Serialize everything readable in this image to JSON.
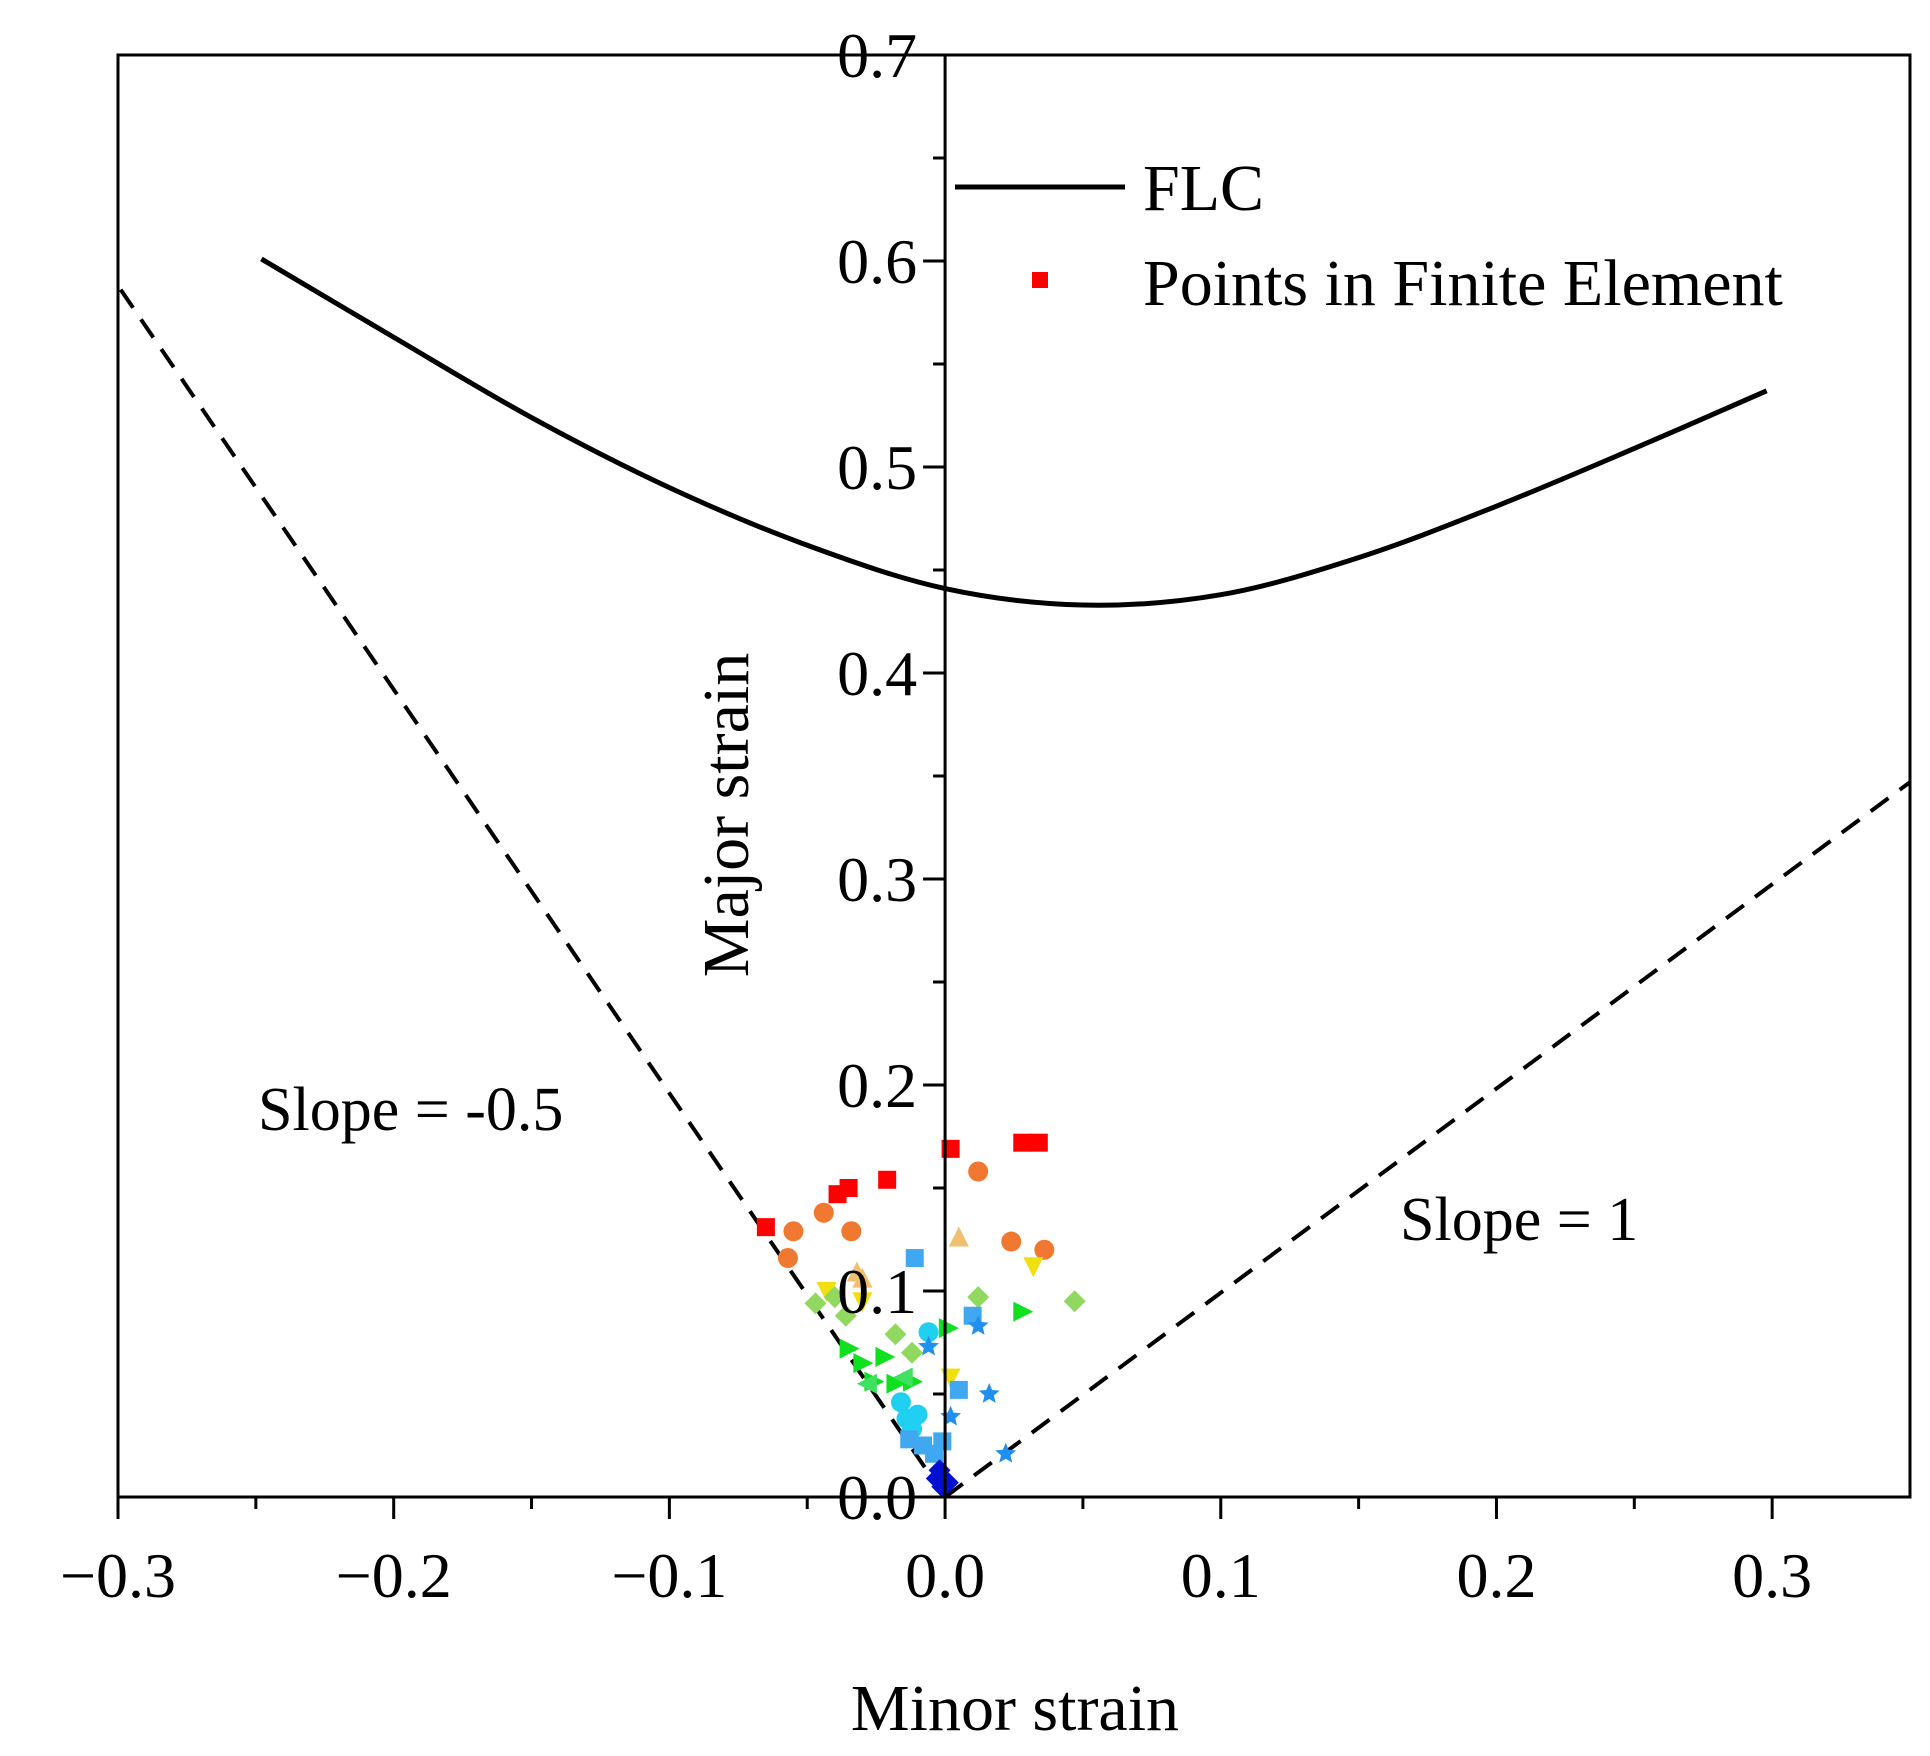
{
  "chart_data": {
    "type": "scatter",
    "title": "",
    "xlabel": "Minor strain",
    "ylabel": "Major strain",
    "xlim": [
      -0.3,
      0.35
    ],
    "ylim": [
      0.0,
      0.7
    ],
    "xticks": [
      -0.3,
      -0.2,
      -0.1,
      0.0,
      0.1,
      0.2,
      0.3
    ],
    "xtick_labels": [
      "−0.3",
      "−0.2",
      "−0.1",
      "0.0",
      "0.1",
      "0.2",
      "0.3"
    ],
    "yticks": [
      0.0,
      0.1,
      0.2,
      0.3,
      0.4,
      0.5,
      0.6,
      0.7
    ],
    "ytick_labels": [
      "0.0",
      "0.1",
      "0.2",
      "0.3",
      "0.4",
      "0.5",
      "0.6",
      "0.7"
    ],
    "grid": false,
    "legend_position": "top-right",
    "legend": [
      {
        "label": "FLC",
        "kind": "line",
        "color": "#000000"
      },
      {
        "label": "Points in Finite Element",
        "kind": "marker",
        "color": "#ff0000"
      }
    ],
    "flc_curve": {
      "name": "FLC",
      "x": [
        -0.248,
        -0.2,
        -0.15,
        -0.1,
        -0.05,
        0.0,
        0.05,
        0.1,
        0.15,
        0.2,
        0.25,
        0.298
      ],
      "y": [
        0.601,
        0.563,
        0.524,
        0.49,
        0.462,
        0.441,
        0.433,
        0.438,
        0.456,
        0.481,
        0.509,
        0.537
      ]
    },
    "reference_lines": [
      {
        "name": "slope-negative",
        "label": "Slope = -0.5",
        "x": [
          0.0,
          -0.3
        ],
        "y": [
          0.0,
          0.588
        ],
        "style": "dashed"
      },
      {
        "name": "slope-positive",
        "label": "Slope = 1",
        "x": [
          0.0,
          0.35
        ],
        "y": [
          0.0,
          0.347
        ],
        "style": "dashed"
      }
    ],
    "annotations": [
      "Slope = -0.5",
      "Slope = 1"
    ],
    "series": [
      {
        "name": "red-squares",
        "marker": "square",
        "color": "#ff0000",
        "points": [
          [
            -0.065,
            0.131
          ],
          [
            -0.039,
            0.147
          ],
          [
            -0.035,
            0.15
          ],
          [
            -0.021,
            0.154
          ],
          [
            0.002,
            0.169
          ],
          [
            0.028,
            0.172
          ],
          [
            0.034,
            0.172
          ]
        ]
      },
      {
        "name": "orange-circles",
        "marker": "circle",
        "color": "#f07830",
        "points": [
          [
            -0.057,
            0.116
          ],
          [
            -0.055,
            0.129
          ],
          [
            -0.044,
            0.138
          ],
          [
            -0.034,
            0.129
          ],
          [
            0.012,
            0.158
          ],
          [
            0.024,
            0.124
          ],
          [
            0.036,
            0.12
          ]
        ]
      },
      {
        "name": "light-orange-triangles",
        "marker": "triangle-up",
        "color": "#f0c070",
        "points": [
          [
            -0.032,
            0.109
          ],
          [
            -0.03,
            0.106
          ],
          [
            0.005,
            0.126
          ]
        ]
      },
      {
        "name": "yellow-down-triangles",
        "marker": "triangle-down",
        "color": "#f0e010",
        "points": [
          [
            -0.043,
            0.1
          ],
          [
            -0.03,
            0.095
          ],
          [
            0.002,
            0.058
          ],
          [
            0.032,
            0.112
          ]
        ]
      },
      {
        "name": "light-green-diamonds",
        "marker": "diamond",
        "color": "#90d860",
        "points": [
          [
            -0.047,
            0.094
          ],
          [
            -0.04,
            0.097
          ],
          [
            -0.036,
            0.088
          ],
          [
            -0.018,
            0.079
          ],
          [
            -0.012,
            0.07
          ],
          [
            0.012,
            0.097
          ],
          [
            0.047,
            0.095
          ]
        ]
      },
      {
        "name": "green-right-triangles",
        "marker": "triangle-right",
        "color": "#10e020",
        "points": [
          [
            -0.035,
            0.072
          ],
          [
            -0.03,
            0.065
          ],
          [
            -0.022,
            0.068
          ],
          [
            -0.026,
            0.056
          ],
          [
            -0.018,
            0.055
          ],
          [
            -0.012,
            0.056
          ],
          [
            0.001,
            0.082
          ],
          [
            0.028,
            0.09
          ]
        ]
      },
      {
        "name": "green-left-triangles",
        "marker": "triangle-left",
        "color": "#40e060",
        "points": [
          [
            -0.028,
            0.055
          ],
          [
            -0.015,
            0.058
          ]
        ]
      },
      {
        "name": "cyan-circles",
        "marker": "circle",
        "color": "#20d0f0",
        "points": [
          [
            -0.016,
            0.046
          ],
          [
            -0.014,
            0.038
          ],
          [
            -0.01,
            0.04
          ],
          [
            -0.012,
            0.033
          ],
          [
            -0.006,
            0.08
          ]
        ]
      },
      {
        "name": "sky-blue-squares",
        "marker": "square",
        "color": "#40a8f0",
        "points": [
          [
            -0.011,
            0.116
          ],
          [
            0.005,
            0.052
          ],
          [
            0.01,
            0.088
          ],
          [
            -0.008,
            0.025
          ],
          [
            -0.004,
            0.021
          ],
          [
            -0.001,
            0.027
          ],
          [
            -0.013,
            0.028
          ]
        ]
      },
      {
        "name": "blue-stars",
        "marker": "star",
        "color": "#2090f0",
        "points": [
          [
            -0.006,
            0.073
          ],
          [
            0.002,
            0.039
          ],
          [
            0.012,
            0.083
          ],
          [
            0.016,
            0.05
          ],
          [
            0.022,
            0.021
          ]
        ]
      },
      {
        "name": "navy-diamonds",
        "marker": "diamond",
        "color": "#0010d0",
        "points": [
          [
            -0.003,
            0.009
          ],
          [
            -0.001,
            0.005
          ],
          [
            0.001,
            0.007
          ],
          [
            -0.002,
            0.013
          ]
        ]
      }
    ]
  }
}
